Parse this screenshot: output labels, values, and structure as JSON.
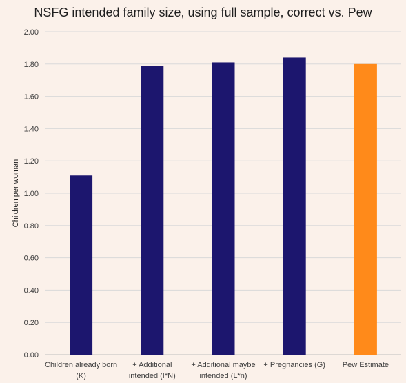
{
  "chart_data": {
    "type": "bar",
    "title": "NSFG intended family size, using full sample, correct vs. Pew",
    "ylabel": "Children per woman",
    "xlabel": "",
    "ylim": [
      0,
      2
    ],
    "yticks": [
      "0.00",
      "0.20",
      "0.40",
      "0.60",
      "0.80",
      "1.00",
      "1.20",
      "1.40",
      "1.60",
      "1.80",
      "2.00"
    ],
    "categories": [
      [
        "Children already born",
        "(K)"
      ],
      [
        "+ Additional",
        "intended (I*N)"
      ],
      [
        "+ Additional maybe",
        "intended (L*n)"
      ],
      [
        "+ Pregnancies (G)"
      ],
      [
        "Pew Estimate"
      ]
    ],
    "values": [
      1.11,
      1.79,
      1.81,
      1.84,
      1.8
    ],
    "bar_colors": [
      "#1c166e",
      "#1c166e",
      "#1c166e",
      "#1c166e",
      "#ff8a1a"
    ],
    "grid": true,
    "legend": "none"
  }
}
